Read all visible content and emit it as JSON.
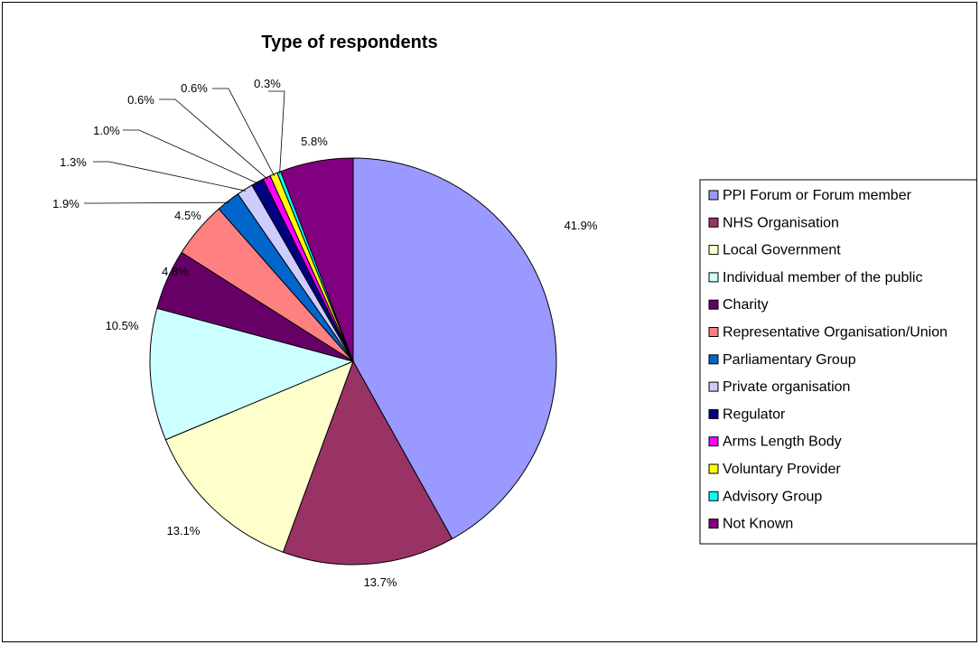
{
  "chart_data": {
    "type": "pie",
    "title": "Type of respondents",
    "legend_position": "right",
    "slices": [
      {
        "label": "PPI Forum or Forum member",
        "value": 41.9,
        "value_label": "41.9%",
        "color": "#9999FF"
      },
      {
        "label": "NHS Organisation",
        "value": 13.7,
        "value_label": "13.7%",
        "color": "#993366"
      },
      {
        "label": "Local Government",
        "value": 13.1,
        "value_label": "13.1%",
        "color": "#FFFFCC"
      },
      {
        "label": "Individual member of the public",
        "value": 10.5,
        "value_label": "10.5%",
        "color": "#CCFFFF"
      },
      {
        "label": "Charity",
        "value": 4.8,
        "value_label": "4.8%",
        "color": "#660066"
      },
      {
        "label": "Representative Organisation/Union",
        "value": 4.5,
        "value_label": "4.5%",
        "color": "#FF8080"
      },
      {
        "label": "Parliamentary Group",
        "value": 1.9,
        "value_label": "1.9%",
        "color": "#0066CC"
      },
      {
        "label": "Private organisation",
        "value": 1.3,
        "value_label": "1.3%",
        "color": "#CCCCFF"
      },
      {
        "label": "Regulator",
        "value": 1.0,
        "value_label": "1.0%",
        "color": "#000080"
      },
      {
        "label": "Arms Length Body",
        "value": 0.6,
        "value_label": "0.6%",
        "color": "#FF00FF"
      },
      {
        "label": "Voluntary Provider",
        "value": 0.6,
        "value_label": "0.6%",
        "color": "#FFFF00"
      },
      {
        "label": "Advisory Group",
        "value": 0.3,
        "value_label": "0.3%",
        "color": "#00FFFF"
      },
      {
        "label": "Not Known",
        "value": 5.8,
        "value_label": "5.8%",
        "color": "#800080"
      }
    ]
  }
}
